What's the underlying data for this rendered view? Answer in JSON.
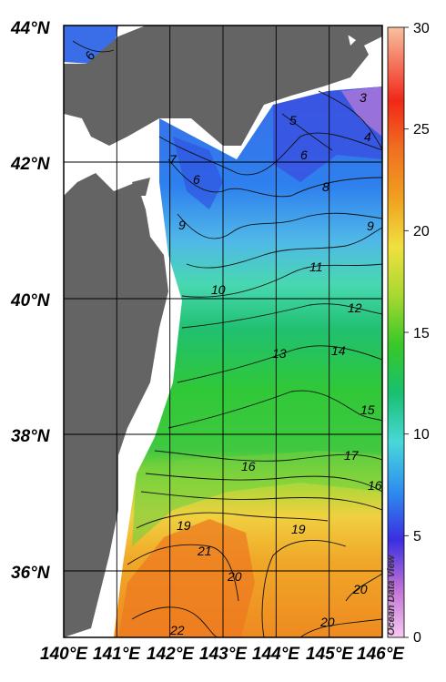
{
  "lat_labels": [
    "44°N",
    "42°N",
    "40°N",
    "38°N",
    "36°N"
  ],
  "lon_labels": [
    "140°E",
    "141°E",
    "142°E",
    "143°E",
    "144°E",
    "145°E",
    "146°E"
  ],
  "colorbar": {
    "ticks": [
      "30",
      "25",
      "20",
      "15",
      "10",
      "5",
      "0"
    ],
    "min": 0,
    "max": 30,
    "colors": [
      "#f0b0e8",
      "#b060d8",
      "#3030e0",
      "#3090f0",
      "#40d0d0",
      "#20c060",
      "#30c030",
      "#a0d830",
      "#f0e040",
      "#f0a020",
      "#f07020",
      "#f03020",
      "#f0b070"
    ]
  },
  "credit": "Ocean Data View",
  "contour_labels": [
    "6",
    "3",
    "5",
    "4",
    "7",
    "6",
    "6",
    "8",
    "9",
    "9",
    "10",
    "11",
    "12",
    "13",
    "14",
    "15",
    "16",
    "17",
    "16",
    "19",
    "19",
    "21",
    "20",
    "20",
    "22",
    "20"
  ]
}
